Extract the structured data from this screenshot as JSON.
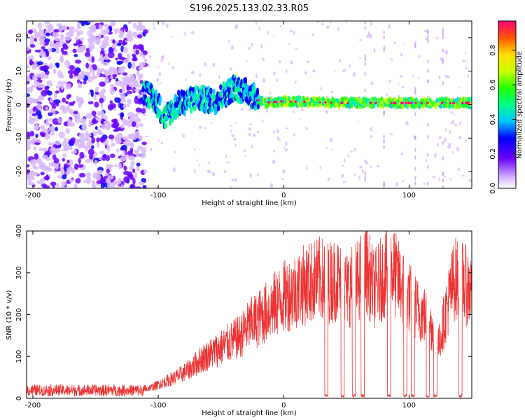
{
  "title": "S196.2025.133.02.33.R05",
  "chart_data": [
    {
      "type": "heatmap",
      "xlabel": "Height of straight line (km)",
      "ylabel": "Frequency (Hz)",
      "xlim": [
        -205,
        150
      ],
      "ylim": [
        -25,
        25
      ],
      "x_ticks": [
        -200,
        -100,
        0,
        100
      ],
      "y_ticks": [
        -20,
        -10,
        0,
        10,
        20
      ],
      "colorbar": {
        "label": "Normalized spectral amplitude",
        "ticks": [
          "0.0",
          "0.2",
          "0.4",
          "0.6",
          "0.8"
        ],
        "range": [
          0,
          0.97
        ]
      },
      "ridge": [
        {
          "x": -110,
          "y": 4
        },
        {
          "x": -100,
          "y": 0
        },
        {
          "x": -95,
          "y": -4
        },
        {
          "x": -85,
          "y": 0
        },
        {
          "x": -70,
          "y": 2
        },
        {
          "x": -55,
          "y": 1
        },
        {
          "x": -40,
          "y": 5
        },
        {
          "x": -30,
          "y": 4
        },
        {
          "x": -22,
          "y": 2
        },
        {
          "x": -15,
          "y": 0.5
        },
        {
          "x": 0,
          "y": 1
        },
        {
          "x": 50,
          "y": 0.5
        },
        {
          "x": 150,
          "y": 0.5
        }
      ]
    },
    {
      "type": "line",
      "xlabel": "Height of straight line (km)",
      "ylabel": "SNR (10 * v/v)",
      "xlim": [
        -205,
        150
      ],
      "ylim": [
        0,
        400
      ],
      "x_ticks": [
        -200,
        -100,
        0,
        100
      ],
      "y_ticks": [
        0,
        100,
        200,
        300,
        400
      ],
      "series": [
        {
          "color": "#ee3333",
          "x": [
            -205,
            -190,
            -170,
            -150,
            -130,
            -115,
            -105,
            -95,
            -85,
            -75,
            -65,
            -55,
            -45,
            -35,
            -28,
            -20,
            -10,
            0,
            10,
            20,
            30,
            36,
            42,
            50,
            58,
            66,
            72,
            80,
            86,
            92,
            100,
            106,
            112,
            118,
            124,
            130,
            136,
            142,
            150
          ],
          "values": [
            20,
            18,
            20,
            19,
            20,
            22,
            30,
            45,
            60,
            80,
            110,
            130,
            150,
            170,
            200,
            220,
            250,
            280,
            300,
            320,
            330,
            320,
            330,
            300,
            320,
            360,
            300,
            340,
            360,
            320,
            280,
            250,
            230,
            200,
            150,
            250,
            330,
            320,
            300
          ]
        }
      ],
      "dropouts": [
        34,
        47,
        56,
        63,
        84,
        97,
        103,
        115,
        121,
        141
      ]
    }
  ]
}
